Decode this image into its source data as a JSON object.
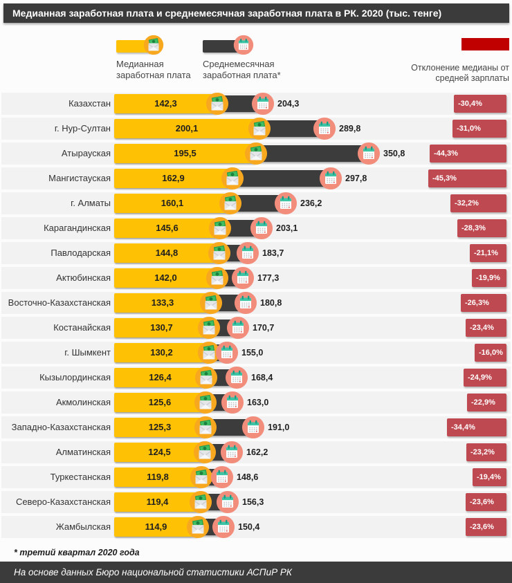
{
  "title": "Медианная заработная плата и среднемесячная заработная плата в РК. 2020 (тыс. тенге)",
  "legend": {
    "median_label": "Медианная заработная плата",
    "average_label": "Среднемесячная заработная плата*",
    "deviation_label": "Отклонение медианы от средней зарплаты"
  },
  "footnote": "* третий квартал 2020 года",
  "source": "На основе данных Бюро национальной статистики  АСПиР РК",
  "colors": {
    "median_bar": "#FFC104",
    "average_bar": "#3C3C3C",
    "deviation_badge": "#BE4950",
    "deviation_legend_swatch": "#C00000",
    "header_bar": "#3B3B3B"
  },
  "chart_data": {
    "type": "bar",
    "orientation": "horizontal",
    "title": "Медианная заработная плата и среднемесячная заработная плата в РК. 2020 (тыс. тенге)",
    "unit": "тыс. тенге",
    "legend_position": "top",
    "grid": false,
    "xlim": [
      0,
      370
    ],
    "categories": [
      "Казахстан",
      "г. Нур-Султан",
      "Атырауская",
      "Мангистауская",
      "г. Алматы",
      "Карагандинская",
      "Павлодарская",
      "Актюбинская",
      "Восточно-Казахстанская",
      "Костанайская",
      "г. Шымкент",
      "Кызылординская",
      "Акмолинская",
      "Западно-Казахстанская",
      "Алматинская",
      "Туркестанская",
      "Северо-Казахстанская",
      "Жамбылская"
    ],
    "series": [
      {
        "name": "Медианная заработная плата",
        "values": [
          142.3,
          200.1,
          195.5,
          162.9,
          160.1,
          145.6,
          144.8,
          142.0,
          133.3,
          130.7,
          130.2,
          126.4,
          125.6,
          125.3,
          124.5,
          119.8,
          119.4,
          114.9
        ]
      },
      {
        "name": "Среднемесячная заработная плата*",
        "values": [
          204.3,
          289.8,
          350.8,
          297.8,
          236.2,
          203.1,
          183.7,
          177.3,
          180.8,
          170.7,
          155.0,
          168.4,
          163.0,
          191.0,
          162.2,
          148.6,
          156.3,
          150.4
        ]
      },
      {
        "name": "Отклонение медианы от средней зарплаты, %",
        "values": [
          -30.4,
          -31.0,
          -44.3,
          -45.3,
          -32.2,
          -28.3,
          -21.1,
          -19.9,
          -26.3,
          -23.4,
          -16.0,
          -24.9,
          -22.9,
          -34.4,
          -23.2,
          -19.4,
          -23.6,
          -23.6
        ]
      }
    ]
  }
}
